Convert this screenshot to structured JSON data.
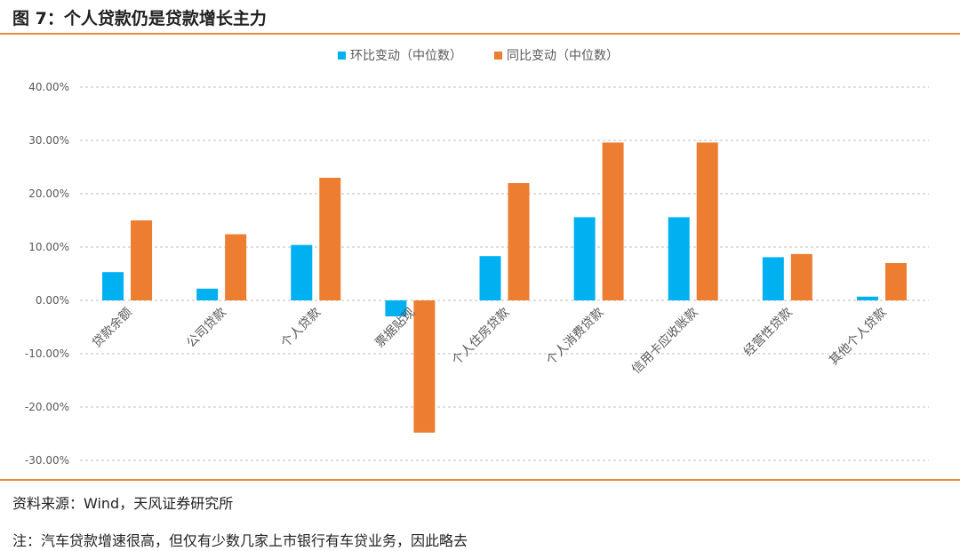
{
  "figure": {
    "title": "图 7：个人贷款仍是贷款增长主力",
    "source": "资料来源：Wind，天风证券研究所",
    "note": "注：汽车贷款增速很高，但仅有少数几家上市银行有车贷业务，因此略去"
  },
  "colors": {
    "accent_rule": "#ec8a35",
    "series_mom": "#00b0f0",
    "series_yoy": "#ed7d31",
    "grid": "#bfbfbf",
    "axis_text": "#595959"
  },
  "chart_data": {
    "type": "bar",
    "title": "",
    "xlabel": "",
    "ylabel": "",
    "legend_position": "top-center",
    "grid": true,
    "grid_style": "dashed-horizontal",
    "y_tick_labels": [
      "40.00%",
      "30.00%",
      "20.00%",
      "10.00%",
      "0.00%",
      "-10.00%",
      "-20.00%",
      "-30.00%"
    ],
    "ylim": [
      -30,
      40
    ],
    "y_ticks": [
      40,
      30,
      20,
      10,
      0,
      -10,
      -20,
      -30
    ],
    "categories": [
      "贷款余额",
      "公司贷款",
      "个人贷款",
      "票据贴现",
      "个人住房贷款",
      "个人消费贷款",
      "信用卡应收账款",
      "经营性贷款",
      "其他个人贷款"
    ],
    "series": [
      {
        "name": "环比变动（中位数）",
        "values": [
          5.3,
          2.2,
          10.4,
          -3.0,
          8.3,
          15.6,
          15.6,
          8.1,
          0.7
        ]
      },
      {
        "name": "同比变动（中位数）",
        "values": [
          15.0,
          12.4,
          23.0,
          -24.8,
          22.0,
          29.6,
          29.6,
          8.7,
          7.0
        ]
      }
    ]
  }
}
